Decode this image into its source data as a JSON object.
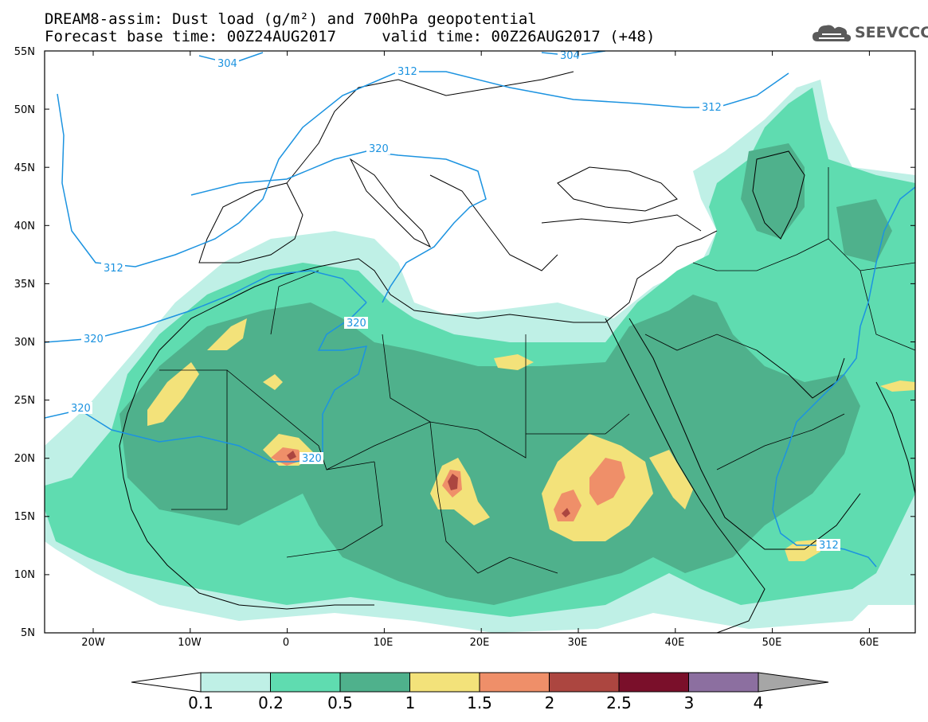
{
  "title": {
    "line1": "DREAM8-assim: Dust load (g/m²) and 700hPa geopotential",
    "line2": "Forecast base time: 00Z24AUG2017     valid time: 00Z26AUG2017 (+48)"
  },
  "logo": {
    "text": "SEEVCCC",
    "icon": "cloud-icon"
  },
  "axes": {
    "lat_labels": [
      "55N",
      "50N",
      "45N",
      "40N",
      "35N",
      "30N",
      "25N",
      "20N",
      "15N",
      "10N",
      "5N"
    ],
    "lon_labels": [
      "20W",
      "10W",
      "0",
      "10E",
      "20E",
      "30E",
      "40E",
      "50E",
      "60E"
    ]
  },
  "contour_labels": {
    "a": "304",
    "b": "312",
    "c": "304",
    "d": "312",
    "e": "312",
    "f": "320",
    "g": "312",
    "h": "320",
    "i": "320",
    "j": "320",
    "k": "320",
    "l": "312"
  },
  "colorbar": {
    "levels": [
      "0.1",
      "0.2",
      "0.5",
      "1",
      "1.5",
      "2",
      "2.5",
      "3",
      "4"
    ],
    "colors": [
      "#bff0e6",
      "#5fdcb0",
      "#4fb18c",
      "#f3e27a",
      "#ef8f69",
      "#ac4640",
      "#7a0f2a",
      "#8c6fa0",
      "#a6a6a6"
    ]
  },
  "palette": {
    "c1": "#bff0e6",
    "c2": "#5fdcb0",
    "c3": "#4fb18c",
    "c4": "#f3e27a",
    "c5": "#ef8f69",
    "c6": "#ac4640",
    "c7": "#7a0f2a",
    "contour": "#1c93e0",
    "border": "#000000"
  }
}
